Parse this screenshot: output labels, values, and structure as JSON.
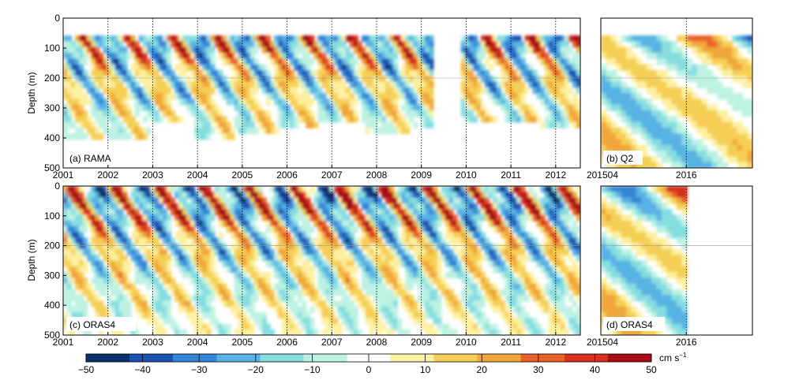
{
  "chart_data": [
    {
      "type": "heatmap",
      "panel_label": "(a) RAMA",
      "ylabel": "Depth (m)",
      "ylim": [
        500,
        0
      ],
      "yticks": [
        "0",
        "100",
        "200",
        "300",
        "400",
        "500"
      ],
      "xticks": [
        "2001",
        "2002",
        "2003",
        "2004",
        "2005",
        "2006",
        "2007",
        "2008",
        "2009",
        "2010",
        "2011",
        "2012"
      ],
      "x_range": [
        2001.0,
        2012.55
      ],
      "data_gap": [
        2009.2,
        2009.8
      ],
      "depth_top": 40,
      "bottom_depths": [
        395,
        400,
        345,
        385,
        370,
        350,
        345,
        370,
        365,
        340,
        340,
        360
      ],
      "annual_amplitude": 45,
      "semiannual_amplitude": 25,
      "grid": true
    },
    {
      "type": "heatmap",
      "panel_label": "(b) Q2",
      "ylim": [
        500,
        0
      ],
      "xticks": [
        "201504",
        "2016"
      ],
      "x_range": [
        2015.25,
        2016.58
      ],
      "depth_top": 50,
      "bottom_depths": [
        500
      ],
      "grid": true
    },
    {
      "type": "heatmap",
      "panel_label": "(c) ORAS4",
      "ylabel": "Depth (m)",
      "ylim": [
        500,
        0
      ],
      "yticks": [
        "0",
        "100",
        "200",
        "300",
        "400",
        "500"
      ],
      "xticks": [
        "2001",
        "2002",
        "2003",
        "2004",
        "2005",
        "2006",
        "2007",
        "2008",
        "2009",
        "2010",
        "2011",
        "2012"
      ],
      "x_range": [
        2001.0,
        2012.55
      ],
      "depth_top": 0,
      "bottom_depths": [
        500
      ],
      "grid": true
    },
    {
      "type": "heatmap",
      "panel_label": "(d) ORAS4",
      "ylim": [
        500,
        0
      ],
      "xticks": [
        "201504",
        "2016"
      ],
      "x_range": [
        2015.25,
        2016.58
      ],
      "data_end": 2016.0,
      "depth_top": 0,
      "bottom_depths": [
        500
      ],
      "grid": true
    }
  ],
  "colorbar": {
    "ticks": [
      "−50",
      "−40",
      "−30",
      "−20",
      "−10",
      "0",
      "10",
      "20",
      "30",
      "40",
      "50"
    ],
    "range": [
      -50,
      50
    ],
    "unit_label": "cm s",
    "unit_exponent": "−1",
    "colors": [
      "#08306b",
      "#1c53b0",
      "#3585d6",
      "#58b2e3",
      "#86dde0",
      "#bdf2e2",
      "#ffffff",
      "#fdf0a0",
      "#f5cf55",
      "#f0a63a",
      "#e8622a",
      "#d72e1e",
      "#a80d14"
    ]
  }
}
